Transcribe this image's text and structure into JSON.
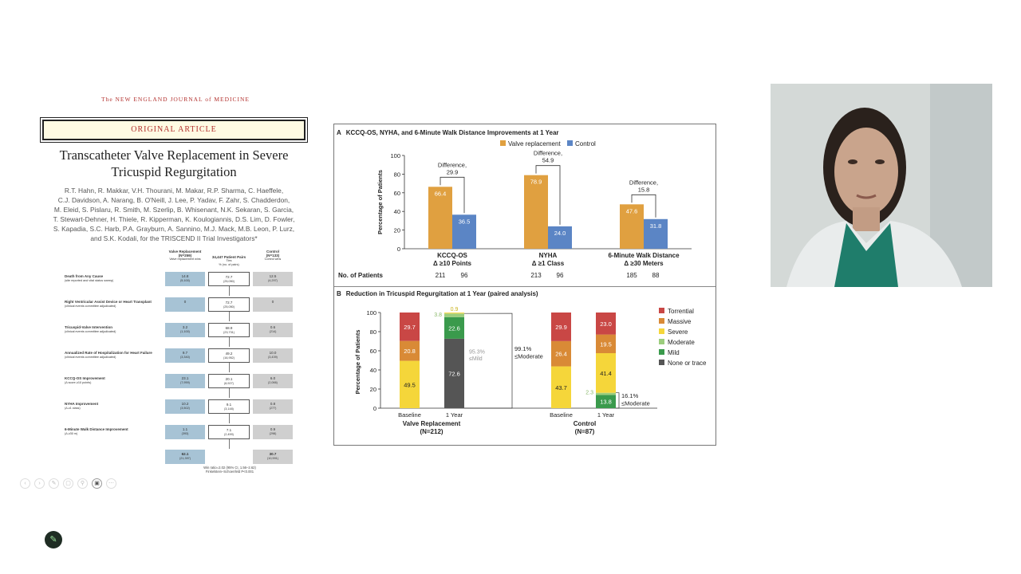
{
  "slide": {
    "journal": "The NEW ENGLAND JOURNAL of MEDICINE",
    "article_type": "ORIGINAL ARTICLE",
    "title_line1": "Transcatheter Valve Replacement in Severe",
    "title_line2": "Tricuspid Regurgitation",
    "authors": [
      "R.T. Hahn, R. Makkar, V.H. Thourani, M. Makar, R.P. Sharma, C. Haeffele,",
      "C.J. Davidson, A. Narang, B. O'Neill, J. Lee, P. Yadav, F. Zahr, S. Chadderdon,",
      "M. Eleid, S. Pislaru, R. Smith, M. Szerlip, B. Whisenant, N.K. Sekaran, S. Garcia,",
      "T. Stewart-Dehner, H. Thiele, R. Kipperman, K. Koulogiannis, D.S. Lim, D. Fowler,",
      "S. Kapadia, S.C. Harb, P.A. Grayburn, A. Sannino, M.J. Mack, M.B. Leon, P. Lurz,",
      "and S.K. Kodali, for the TRISCEND II Trial Investigators*"
    ],
    "flow": {
      "head_vr": "Valve Replacement",
      "head_vr_n": "(N=259)",
      "head_vr_sub": "Valve replacement wins",
      "head_pairs": "34,447 Patient Pairs",
      "head_pairs_sub": "Ties",
      "head_pairs_sub2": "% (no. of pairs)",
      "head_ctl": "Control",
      "head_ctl_n": "(N=133)",
      "head_ctl_sub": "Control wins",
      "rows": [
        {
          "label": "Death from Any Cause",
          "sub": "(site reported and vital status sweep)",
          "vr": "14.8",
          "vr_n": "(5,100)",
          "tie": "72.7",
          "tie_n": "(25,050)",
          "ctl": "12.5",
          "ctl_n": "(4,297)"
        },
        {
          "label": "Right Ventricular Assist Device or Heart Transplant",
          "sub": "(clinical events committee adjudicated)",
          "vr": "0",
          "vr_n": "",
          "tie": "72.7",
          "tie_n": "(25,050)",
          "ctl": "0",
          "ctl_n": ""
        },
        {
          "label": "Tricuspid-Valve Intervention",
          "sub": "(clinical events committee adjudicated)",
          "vr": "3.2",
          "vr_n": "(1,100)",
          "tie": "68.9",
          "tie_n": "(23,731)",
          "ctl": "0.6",
          "ctl_n": "(214)"
        },
        {
          "label": "Annualized Rate of Hospitalization for Heart Failure",
          "sub": "(clinical events committee adjudicated)",
          "vr": "9.7",
          "vr_n": "(3,340)",
          "tie": "49.2",
          "tie_n": "(16,952)",
          "ctl": "10.0",
          "ctl_n": "(3,439)"
        },
        {
          "label": "KCCQ-OS Improvement",
          "sub": "(Δ score ≥10 points)",
          "vr": "23.1",
          "vr_n": "(7,959)",
          "tie": "20.1",
          "tie_n": "(6,927)",
          "ctl": "6.0",
          "ctl_n": "(2,066)"
        },
        {
          "label": "NYHA Improvement",
          "sub": "(Δ ≥1 class)",
          "vr": "10.2",
          "vr_n": "(3,502)",
          "tie": "9.1",
          "tie_n": "(3,148)",
          "ctl": "0.8",
          "ctl_n": "(277)"
        },
        {
          "label": "6-Minute Walk Distance Improvement",
          "sub": "(Δ ≥30 m)",
          "vr": "1.1",
          "vr_n": "(393)",
          "tie": "7.1",
          "tie_n": "(2,459)",
          "ctl": "0.9",
          "ctl_n": "(298)"
        }
      ],
      "total_vr": "62.1",
      "total_vr_n": "(21,397)",
      "total_ctl": "30.7",
      "total_ctl_n": "(10,591)",
      "win_ratio": "Win ratio=2.02 (95% CI, 1.56–2.62)",
      "test": "Finkelstein–Schoenfeld P<0.001"
    }
  },
  "toolbar_icons": [
    "back-icon",
    "forward-icon",
    "pen-icon",
    "copy-icon",
    "zoom-icon",
    "cc-icon",
    "more-icon"
  ],
  "figure": {
    "panel_a": {
      "letter": "A",
      "title": "KCCQ-OS, NYHA, and 6-Minute Walk Distance Improvements at 1 Year",
      "patients_label": "No. of Patients"
    },
    "panel_b": {
      "letter": "B",
      "title": "Reduction in Tricuspid Regurgitation at 1 Year (paired analysis)",
      "group1": "Valve Replacement",
      "group1_n": "(N=212)",
      "group2": "Control",
      "group2_n": "(N=87)",
      "annot_953_a": "95.3%",
      "annot_953_b": "≤Mild",
      "annot_991_a": "99.1%",
      "annot_991_b": "≤Moderate",
      "annot_161_a": "16.1%",
      "annot_161_b": "≤Moderate"
    }
  },
  "chart_data": [
    {
      "type": "bar",
      "title": "KCCQ-OS, NYHA, and 6-Minute Walk Distance Improvements at 1 Year",
      "ylabel": "Percentage of Patients",
      "ylim": [
        0,
        100
      ],
      "yticks": [
        0,
        20,
        40,
        60,
        80,
        100
      ],
      "categories": [
        "KCCQ-OS",
        "NYHA",
        "6-Minute Walk Distance"
      ],
      "category_sublabels": [
        "Δ ≥10 Points",
        "Δ ≥1 Class",
        "Δ ≥30 Meters"
      ],
      "series": [
        {
          "name": "Valve replacement",
          "color": "#e0a040",
          "values": [
            66.4,
            78.9,
            47.6
          ],
          "patients": [
            "211",
            "213",
            "185"
          ]
        },
        {
          "name": "Control",
          "color": "#5b85c5",
          "values": [
            36.5,
            24.0,
            31.8
          ],
          "patients": [
            "96",
            "96",
            "88"
          ]
        }
      ],
      "differences": [
        {
          "label": "Difference,",
          "value": "29.9"
        },
        {
          "label": "Difference,",
          "value": "54.9"
        },
        {
          "label": "Difference,",
          "value": "15.8"
        }
      ],
      "legend": "top"
    },
    {
      "type": "bar",
      "stacked": true,
      "title": "Reduction in Tricuspid Regurgitation at 1 Year (paired analysis)",
      "ylabel": "Percentage of Patients",
      "ylim": [
        0,
        100
      ],
      "yticks": [
        0,
        20,
        40,
        60,
        80,
        100
      ],
      "categories": [
        "Baseline",
        "1 Year",
        "Baseline",
        "1 Year"
      ],
      "groups": [
        "Valve Replacement (N=212)",
        "Control (N=87)"
      ],
      "series": [
        {
          "name": "None or trace",
          "color": "#555555",
          "values": [
            0,
            72.6,
            0,
            0
          ]
        },
        {
          "name": "Mild",
          "color": "#3a9a4c",
          "values": [
            0,
            22.6,
            0,
            13.8
          ]
        },
        {
          "name": "Moderate",
          "color": "#9ccd7d",
          "values": [
            0,
            3.8,
            0,
            2.3
          ]
        },
        {
          "name": "Severe",
          "color": "#f5d63a",
          "values": [
            49.5,
            0.9,
            43.7,
            41.4
          ]
        },
        {
          "name": "Massive",
          "color": "#d98a36",
          "values": [
            20.8,
            0,
            26.4,
            19.5
          ]
        },
        {
          "name": "Torrential",
          "color": "#c94745",
          "values": [
            29.7,
            0,
            29.9,
            23.0
          ]
        }
      ],
      "data_labels": [
        [
          "",
          "72.6",
          "",
          ""
        ],
        [
          "",
          "22.6",
          "",
          "13.8"
        ],
        [
          "",
          "3.8",
          "",
          "2.3"
        ],
        [
          "49.5",
          "0.9",
          "43.7",
          "41.4"
        ],
        [
          "20.8",
          "",
          "26.4",
          "19.5"
        ],
        [
          "29.7",
          "",
          "29.9",
          "23.0"
        ]
      ],
      "legend": "right"
    }
  ]
}
